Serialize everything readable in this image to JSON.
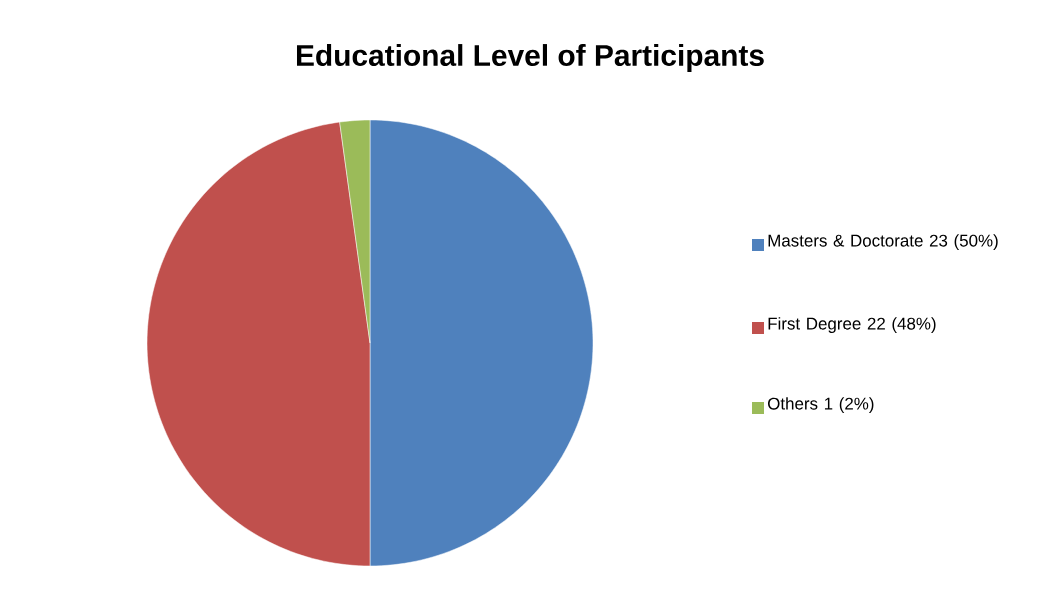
{
  "chart_data": {
    "type": "pie",
    "title": "Educational Level of Participants",
    "categories": [
      "Masters & Doctorate 23 (50%)",
      "First Degree 22 (48%)",
      "Others 1 (2%)"
    ],
    "values": [
      23,
      22,
      1
    ],
    "colors": [
      "#4f81bd",
      "#c0504d",
      "#9bbb59"
    ],
    "legend": "right"
  }
}
